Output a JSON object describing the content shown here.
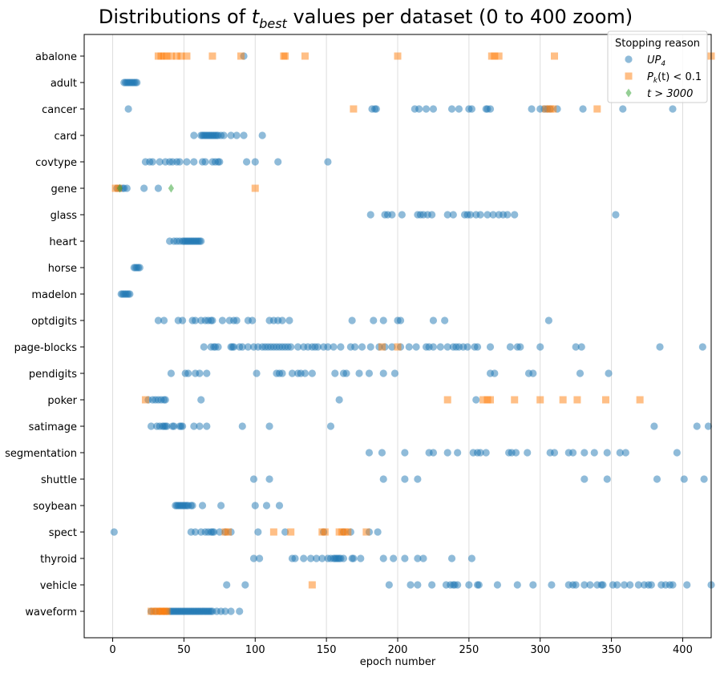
{
  "chart_data": {
    "type": "scatter",
    "title_pre": "Distributions of ",
    "title_var": "t",
    "title_sub": "best",
    "title_post": " values per dataset (0 to 400 zoom)",
    "xlabel": "epoch number",
    "ylabel": "",
    "xlim": [
      -20,
      420
    ],
    "xticks": [
      0,
      50,
      100,
      150,
      200,
      250,
      300,
      350,
      400
    ],
    "grid": "vertical",
    "categories": [
      "abalone",
      "adult",
      "cancer",
      "card",
      "covtype",
      "gene",
      "glass",
      "heart",
      "horse",
      "madelon",
      "optdigits",
      "page-blocks",
      "pendigits",
      "poker",
      "satimage",
      "segmentation",
      "shuttle",
      "soybean",
      "spect",
      "thyroid",
      "vehicle",
      "waveform"
    ],
    "legend": {
      "title": "Stopping reason",
      "position": "top-right",
      "entries": [
        {
          "series": "UP4",
          "label_main": "UP",
          "label_sub": "4"
        },
        {
          "series": "Pk",
          "label_main": "P",
          "label_sub": "k",
          "label_rest": "(t) < 0.1"
        },
        {
          "series": "t3000",
          "label_main": "t > 3000"
        }
      ]
    },
    "series": [
      {
        "name": "UP4",
        "marker": "circle",
        "color": "#1f77b4",
        "points": [
          {
            "category": "abalone",
            "x": [
              92
            ]
          },
          {
            "category": "adult",
            "x": [
              8,
              9,
              10,
              11,
              12,
              13,
              14,
              15,
              16,
              17
            ]
          },
          {
            "category": "cancer",
            "x": [
              11,
              182,
              184,
              185,
              212,
              215,
              220,
              225,
              238,
              243,
              250,
              252,
              262,
              263,
              265,
              294,
              300,
              303,
              305,
              307,
              312,
              330,
              358,
              393
            ]
          },
          {
            "category": "card",
            "x": [
              57,
              62,
              63,
              64,
              65,
              66,
              67,
              68,
              69,
              70,
              71,
              72,
              73,
              74,
              76,
              78,
              83,
              87,
              92,
              105
            ]
          },
          {
            "category": "covtype",
            "x": [
              23,
              26,
              28,
              33,
              37,
              40,
              42,
              45,
              47,
              52,
              57,
              63,
              65,
              70,
              72,
              74,
              75,
              94,
              100,
              116,
              151
            ]
          },
          {
            "category": "gene",
            "x": [
              3,
              5,
              7,
              8,
              10,
              22,
              32
            ]
          },
          {
            "category": "glass",
            "x": [
              181,
              191,
              193,
              196,
              203,
              214,
              216,
              218,
              221,
              224,
              235,
              239,
              247,
              249,
              251,
              255,
              258,
              263,
              267,
              271,
              274,
              277,
              282,
              353
            ]
          },
          {
            "category": "heart",
            "x": [
              40,
              43,
              45,
              47,
              49,
              50,
              51,
              52,
              53,
              54,
              55,
              56,
              57,
              58,
              59,
              60,
              61,
              62
            ]
          },
          {
            "category": "horse",
            "x": [
              15,
              16,
              17,
              18,
              19
            ]
          },
          {
            "category": "madelon",
            "x": [
              6,
              7,
              8,
              9,
              10,
              11,
              12
            ]
          },
          {
            "category": "optdigits",
            "x": [
              32,
              36,
              46,
              49,
              56,
              58,
              62,
              65,
              67,
              69,
              70,
              77,
              82,
              85,
              87,
              95,
              98,
              110,
              113,
              116,
              119,
              124,
              168,
              183,
              190,
              200,
              202,
              225,
              233,
              306
            ]
          },
          {
            "category": "page-blocks",
            "x": [
              64,
              69,
              71,
              72,
              74,
              83,
              84,
              85,
              89,
              91,
              95,
              99,
              102,
              105,
              107,
              109,
              111,
              113,
              115,
              117,
              119,
              121,
              123,
              125,
              130,
              134,
              137,
              140,
              142,
              144,
              148,
              151,
              155,
              160,
              167,
              170,
              175,
              181,
              187,
              191,
              196,
              202,
              208,
              213,
              220,
              222,
              225,
              230,
              235,
              239,
              241,
              243,
              246,
              249,
              254,
              256,
              265,
              279,
              284,
              286,
              300,
              325,
              329,
              384,
              414
            ]
          },
          {
            "category": "pendigits",
            "x": [
              41,
              51,
              53,
              58,
              61,
              66,
              101,
              115,
              117,
              119,
              126,
              130,
              132,
              135,
              140,
              156,
              162,
              164,
              173,
              180,
              190,
              198,
              265,
              268,
              292,
              295,
              328,
              348
            ]
          },
          {
            "category": "poker",
            "x": [
              25,
              28,
              30,
              32,
              34,
              36,
              37,
              62,
              159,
              255
            ]
          },
          {
            "category": "satimage",
            "x": [
              27,
              31,
              33,
              35,
              36,
              37,
              38,
              42,
              43,
              47,
              48,
              49,
              57,
              61,
              66,
              91,
              110,
              153,
              380,
              410,
              418
            ]
          },
          {
            "category": "segmentation",
            "x": [
              180,
              189,
              205,
              222,
              225,
              235,
              242,
              253,
              256,
              258,
              262,
              278,
              280,
              283,
              291,
              307,
              310,
              320,
              323,
              331,
              338,
              347,
              356,
              360,
              396
            ]
          },
          {
            "category": "shuttle",
            "x": [
              99,
              110,
              190,
              205,
              214,
              331,
              347,
              382,
              401,
              415
            ]
          },
          {
            "category": "soybean",
            "x": [
              44,
              45,
              46,
              47,
              48,
              49,
              50,
              51,
              52,
              53,
              55,
              56,
              63,
              76,
              100,
              108,
              117
            ]
          },
          {
            "category": "spect",
            "x": [
              1,
              55,
              58,
              62,
              65,
              67,
              69,
              70,
              71,
              75,
              79,
              83,
              102,
              121,
              148,
              162,
              167,
              180,
              186
            ]
          },
          {
            "category": "thyroid",
            "x": [
              99,
              103,
              126,
              128,
              134,
              139,
              143,
              147,
              151,
              153,
              155,
              156,
              157,
              158,
              159,
              160,
              162,
              168,
              169,
              174,
              190,
              197,
              205,
              214,
              218,
              238,
              252
            ]
          },
          {
            "category": "vehicle",
            "x": [
              80,
              93,
              194,
              209,
              214,
              224,
              234,
              237,
              239,
              240,
              242,
              250,
              256,
              257,
              270,
              284,
              295,
              308,
              320,
              323,
              325,
              331,
              335,
              340,
              343,
              344,
              351,
              354,
              359,
              363,
              369,
              373,
              376,
              378,
              385,
              388,
              391,
              393,
              403,
              420
            ]
          },
          {
            "category": "waveform",
            "x": [
              27,
              30,
              33,
              36,
              38,
              40,
              41,
              42,
              43,
              44,
              45,
              46,
              47,
              48,
              49,
              50,
              51,
              52,
              53,
              54,
              55,
              56,
              57,
              58,
              59,
              60,
              61,
              62,
              63,
              64,
              65,
              66,
              67,
              68,
              69,
              70,
              73,
              76,
              79,
              83,
              89
            ]
          }
        ]
      },
      {
        "name": "Pk",
        "marker": "square",
        "color": "#ff7f0e",
        "points": [
          {
            "category": "abalone",
            "x": [
              32,
              34,
              36,
              38,
              41,
              45,
              48,
              52,
              70,
              90,
              120,
              121,
              135,
              200,
              266,
              268,
              271,
              310,
              420
            ]
          },
          {
            "category": "cancer",
            "x": [
              169,
              304,
              307,
              309,
              340
            ]
          },
          {
            "category": "gene",
            "x": [
              2,
              4,
              100
            ]
          },
          {
            "category": "page-blocks",
            "x": [
              189,
              200
            ]
          },
          {
            "category": "poker",
            "x": [
              23,
              235,
              260,
              263,
              265,
              282,
              300,
              316,
              326,
              346,
              370
            ]
          },
          {
            "category": "spect",
            "x": [
              79,
              81,
              113,
              125,
              147,
              149,
              159,
              161,
              163,
              165,
              178
            ]
          },
          {
            "category": "vehicle",
            "x": [
              140
            ]
          },
          {
            "category": "waveform",
            "x": [
              27,
              29,
              31,
              33,
              34,
              35,
              36,
              37,
              38
            ]
          }
        ]
      },
      {
        "name": "t3000",
        "marker": "diamond",
        "color": "#2ca02c",
        "points": [
          {
            "category": "gene",
            "x": [
              5,
              41
            ]
          }
        ]
      }
    ]
  }
}
